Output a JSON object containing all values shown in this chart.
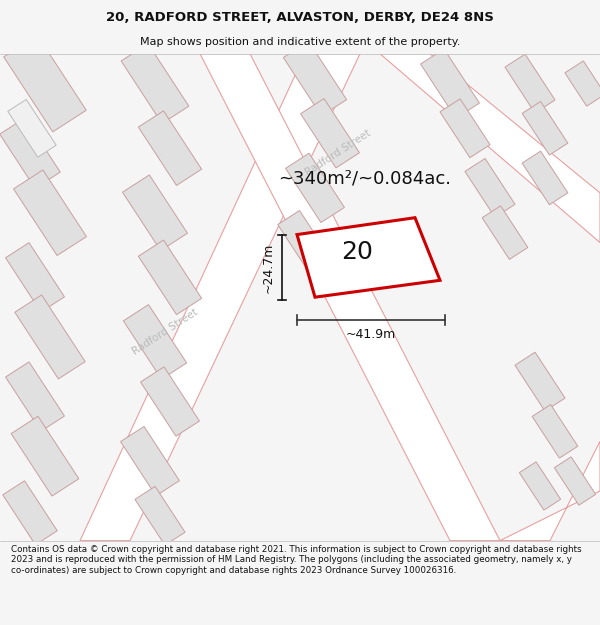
{
  "title": "20, RADFORD STREET, ALVASTON, DERBY, DE24 8NS",
  "subtitle": "Map shows position and indicative extent of the property.",
  "footer": "Contains OS data © Crown copyright and database right 2021. This information is subject to Crown copyright and database rights 2023 and is reproduced with the permission of HM Land Registry. The polygons (including the associated geometry, namely x, y co-ordinates) are subject to Crown copyright and database rights 2023 Ordnance Survey 100026316.",
  "bg_color": "#f5f5f5",
  "map_bg": "#ffffff",
  "road_outline_color": "#e8a0a0",
  "building_fill": "#e0e0e0",
  "building_edge": "#c8a0a0",
  "highlight_color": "#cc0000",
  "highlight_fill": "#ffffff",
  "area_text": "~340m²/~0.084ac.",
  "number_label": "20",
  "dim_width": "~41.9m",
  "dim_height": "~24.7m",
  "street_name_upper": "Radford Street",
  "street_name_lower": "Radford Street"
}
